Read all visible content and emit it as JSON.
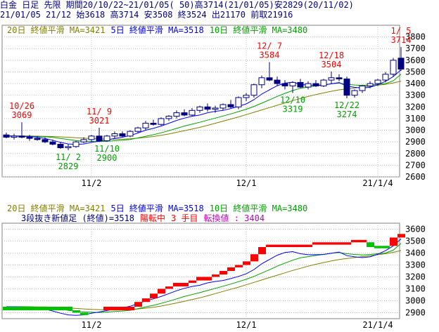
{
  "header": {
    "line1": "白金 日足 先限 期間20/10/22~21/01/05( 50)高3714(21/01/05)安2829(20/11/02)",
    "line2": "21/01/05 21/12 始3618 高3714 安3508 終3524 出21170 前取21916"
  },
  "colors": {
    "up": "#ffffff",
    "down": "#000080",
    "ma5": "#0000ff",
    "ma10": "#00a000",
    "ma20": "#808000",
    "grid": "#c0c0c0",
    "high_label": "#ff0000",
    "low_label": "#00a000",
    "breakout_up": "#ff0000",
    "breakout_down": "#00c000"
  },
  "chart_data": [
    {
      "type": "candlestick",
      "legend": {
        "ma20": "20日 終値平滑 MA=3421",
        "ma5": "5日 終値平滑 MA=3518",
        "ma10": "10日 終値平滑 MA=3480"
      },
      "ylim": [
        2600,
        3900
      ],
      "yticks": [
        2600,
        2700,
        2800,
        2900,
        3000,
        3100,
        3200,
        3300,
        3400,
        3500,
        3600,
        3700,
        3800
      ],
      "xticks": [
        {
          "label": "11/2",
          "index": 11
        },
        {
          "label": "12/1",
          "index": 31
        },
        {
          "label": "21/1/4",
          "index": 48
        }
      ],
      "grid": true,
      "candles": [
        {
          "o": 2960,
          "h": 2980,
          "l": 2930,
          "c": 2940
        },
        {
          "o": 2940,
          "h": 2970,
          "l": 2920,
          "c": 2950
        },
        {
          "o": 2950,
          "h": 3069,
          "l": 2930,
          "c": 2940
        },
        {
          "o": 2940,
          "h": 2960,
          "l": 2910,
          "c": 2930
        },
        {
          "o": 2930,
          "h": 2950,
          "l": 2910,
          "c": 2920
        },
        {
          "o": 2920,
          "h": 2940,
          "l": 2890,
          "c": 2900
        },
        {
          "o": 2900,
          "h": 2920,
          "l": 2870,
          "c": 2880
        },
        {
          "o": 2880,
          "h": 2900,
          "l": 2840,
          "c": 2850
        },
        {
          "o": 2850,
          "h": 2880,
          "l": 2829,
          "c": 2860
        },
        {
          "o": 2860,
          "h": 2910,
          "l": 2850,
          "c": 2900
        },
        {
          "o": 2900,
          "h": 2940,
          "l": 2890,
          "c": 2920
        },
        {
          "o": 2920,
          "h": 2960,
          "l": 2900,
          "c": 2950
        },
        {
          "o": 2950,
          "h": 3021,
          "l": 2900,
          "c": 2910
        },
        {
          "o": 2910,
          "h": 2960,
          "l": 2900,
          "c": 2950
        },
        {
          "o": 2950,
          "h": 2990,
          "l": 2930,
          "c": 2970
        },
        {
          "o": 2970,
          "h": 2990,
          "l": 2940,
          "c": 2950
        },
        {
          "o": 2950,
          "h": 3000,
          "l": 2940,
          "c": 2990
        },
        {
          "o": 2990,
          "h": 3030,
          "l": 2980,
          "c": 3020
        },
        {
          "o": 3020,
          "h": 3080,
          "l": 3000,
          "c": 3060
        },
        {
          "o": 3060,
          "h": 3090,
          "l": 3040,
          "c": 3050
        },
        {
          "o": 3050,
          "h": 3110,
          "l": 3040,
          "c": 3100
        },
        {
          "o": 3100,
          "h": 3130,
          "l": 3080,
          "c": 3120
        },
        {
          "o": 3120,
          "h": 3170,
          "l": 3100,
          "c": 3150
        },
        {
          "o": 3150,
          "h": 3180,
          "l": 3120,
          "c": 3130
        },
        {
          "o": 3130,
          "h": 3190,
          "l": 3120,
          "c": 3170
        },
        {
          "o": 3170,
          "h": 3210,
          "l": 3150,
          "c": 3200
        },
        {
          "o": 3200,
          "h": 3230,
          "l": 3160,
          "c": 3180
        },
        {
          "o": 3180,
          "h": 3210,
          "l": 3150,
          "c": 3190
        },
        {
          "o": 3190,
          "h": 3230,
          "l": 3170,
          "c": 3220
        },
        {
          "o": 3220,
          "h": 3260,
          "l": 3190,
          "c": 3200
        },
        {
          "o": 3200,
          "h": 3290,
          "l": 3180,
          "c": 3280
        },
        {
          "o": 3280,
          "h": 3320,
          "l": 3250,
          "c": 3300
        },
        {
          "o": 3300,
          "h": 3400,
          "l": 3280,
          "c": 3390
        },
        {
          "o": 3390,
          "h": 3470,
          "l": 3360,
          "c": 3450
        },
        {
          "o": 3450,
          "h": 3584,
          "l": 3420,
          "c": 3430
        },
        {
          "o": 3430,
          "h": 3460,
          "l": 3380,
          "c": 3400
        },
        {
          "o": 3400,
          "h": 3430,
          "l": 3350,
          "c": 3380
        },
        {
          "o": 3380,
          "h": 3420,
          "l": 3319,
          "c": 3410
        },
        {
          "o": 3410,
          "h": 3440,
          "l": 3360,
          "c": 3370
        },
        {
          "o": 3370,
          "h": 3420,
          "l": 3350,
          "c": 3400
        },
        {
          "o": 3400,
          "h": 3430,
          "l": 3370,
          "c": 3380
        },
        {
          "o": 3380,
          "h": 3440,
          "l": 3370,
          "c": 3430
        },
        {
          "o": 3430,
          "h": 3504,
          "l": 3400,
          "c": 3450
        },
        {
          "o": 3450,
          "h": 3480,
          "l": 3420,
          "c": 3440
        },
        {
          "o": 3440,
          "h": 3460,
          "l": 3274,
          "c": 3300
        },
        {
          "o": 3300,
          "h": 3350,
          "l": 3280,
          "c": 3340
        },
        {
          "o": 3340,
          "h": 3390,
          "l": 3320,
          "c": 3380
        },
        {
          "o": 3380,
          "h": 3420,
          "l": 3360,
          "c": 3400
        },
        {
          "o": 3400,
          "h": 3440,
          "l": 3380,
          "c": 3430
        },
        {
          "o": 3430,
          "h": 3500,
          "l": 3410,
          "c": 3480
        },
        {
          "o": 3480,
          "h": 3620,
          "l": 3460,
          "c": 3600
        },
        {
          "o": 3618,
          "h": 3714,
          "l": 3508,
          "c": 3524
        }
      ],
      "ma5": [
        2950,
        2950,
        2948,
        2946,
        2940,
        2930,
        2914,
        2896,
        2882,
        2878,
        2882,
        2896,
        2906,
        2918,
        2930,
        2940,
        2954,
        2976,
        3000,
        3016,
        3036,
        3060,
        3084,
        3104,
        3120,
        3130,
        3150,
        3162,
        3170,
        3186,
        3204,
        3226,
        3262,
        3310,
        3346,
        3382,
        3404,
        3412,
        3394,
        3386,
        3386,
        3388,
        3398,
        3408,
        3378,
        3368,
        3362,
        3368,
        3390,
        3420,
        3460,
        3518
      ],
      "ma10": [
        2950,
        2950,
        2950,
        2948,
        2946,
        2944,
        2938,
        2930,
        2920,
        2912,
        2906,
        2904,
        2902,
        2906,
        2910,
        2914,
        2920,
        2934,
        2948,
        2962,
        2978,
        2996,
        3016,
        3036,
        3052,
        3068,
        3086,
        3104,
        3122,
        3140,
        3160,
        3180,
        3204,
        3232,
        3260,
        3290,
        3316,
        3340,
        3360,
        3370,
        3380,
        3388,
        3398,
        3404,
        3394,
        3388,
        3384,
        3388,
        3394,
        3400,
        3424,
        3480
      ],
      "ma20": [
        2950,
        2950,
        2950,
        2950,
        2949,
        2948,
        2946,
        2943,
        2940,
        2936,
        2932,
        2928,
        2926,
        2924,
        2923,
        2924,
        2927,
        2932,
        2938,
        2946,
        2956,
        2968,
        2982,
        2996,
        3010,
        3025,
        3042,
        3060,
        3078,
        3096,
        3114,
        3134,
        3154,
        3174,
        3194,
        3214,
        3234,
        3254,
        3272,
        3290,
        3306,
        3320,
        3334,
        3346,
        3354,
        3362,
        3370,
        3378,
        3386,
        3394,
        3406,
        3421
      ],
      "annotations": [
        {
          "kind": "high",
          "index": 2,
          "date": "10/26",
          "value": "3069"
        },
        {
          "kind": "high",
          "index": 12,
          "date": "11/ 9",
          "value": "3021"
        },
        {
          "kind": "high",
          "index": 34,
          "date": "12/ 7",
          "value": "3584"
        },
        {
          "kind": "high",
          "index": 42,
          "date": "12/18",
          "value": "3504"
        },
        {
          "kind": "high",
          "index": 51,
          "date": "1/ 5",
          "value": "3714"
        },
        {
          "kind": "low",
          "index": 8,
          "date": "11/ 2",
          "value": "2829"
        },
        {
          "kind": "low",
          "index": 13,
          "date": "11/10",
          "value": "2900"
        },
        {
          "kind": "low",
          "index": 37,
          "date": "12/10",
          "value": "3319"
        },
        {
          "kind": "low",
          "index": 44,
          "date": "12/22",
          "value": "3274"
        }
      ]
    },
    {
      "type": "three-line-break",
      "legend": {
        "ma20": "20日 終値平滑 MA=3421",
        "ma5": "5日 終値平滑 MA=3518",
        "ma10": "10日 終値平滑 MA=3480"
      },
      "status": {
        "text1": "3段抜き新値足 (終値)=3518",
        "text2": "陽転中",
        "text3": "3 手目",
        "text4": "転換値 : 3404"
      },
      "ylim": [
        2850,
        3650
      ],
      "yticks": [
        2900,
        3000,
        3100,
        3200,
        3300,
        3400,
        3500,
        3600
      ],
      "xticks": [
        {
          "label": "11/2",
          "index": 11
        },
        {
          "label": "12/1",
          "index": 31
        },
        {
          "label": "21/1/4",
          "index": 48
        }
      ],
      "grid": true,
      "bricks": [
        {
          "i0": 0,
          "i1": 9,
          "lo": 2920,
          "hi": 2950,
          "dir": "down"
        },
        {
          "i0": 9,
          "i1": 10,
          "lo": 2900,
          "hi": 2920,
          "dir": "down"
        },
        {
          "i0": 10,
          "i1": 11,
          "lo": 2880,
          "hi": 2900,
          "dir": "down"
        },
        {
          "i0": 13,
          "i1": 17,
          "lo": 2920,
          "hi": 2950,
          "dir": "up"
        },
        {
          "i0": 17,
          "i1": 18,
          "lo": 2950,
          "hi": 2990,
          "dir": "up"
        },
        {
          "i0": 18,
          "i1": 19,
          "lo": 2990,
          "hi": 3020,
          "dir": "up"
        },
        {
          "i0": 19,
          "i1": 20,
          "lo": 3020,
          "hi": 3060,
          "dir": "up"
        },
        {
          "i0": 20,
          "i1": 21,
          "lo": 3060,
          "hi": 3100,
          "dir": "up"
        },
        {
          "i0": 21,
          "i1": 22,
          "lo": 3100,
          "hi": 3120,
          "dir": "up"
        },
        {
          "i0": 22,
          "i1": 24,
          "lo": 3120,
          "hi": 3150,
          "dir": "up"
        },
        {
          "i0": 24,
          "i1": 25,
          "lo": 3150,
          "hi": 3170,
          "dir": "up"
        },
        {
          "i0": 25,
          "i1": 27,
          "lo": 3170,
          "hi": 3200,
          "dir": "up"
        },
        {
          "i0": 27,
          "i1": 28,
          "lo": 3200,
          "hi": 3220,
          "dir": "up"
        },
        {
          "i0": 28,
          "i1": 29,
          "lo": 3220,
          "hi": 3250,
          "dir": "up"
        },
        {
          "i0": 29,
          "i1": 30,
          "lo": 3250,
          "hi": 3280,
          "dir": "up"
        },
        {
          "i0": 30,
          "i1": 31,
          "lo": 3280,
          "hi": 3300,
          "dir": "up"
        },
        {
          "i0": 31,
          "i1": 32,
          "lo": 3300,
          "hi": 3330,
          "dir": "up"
        },
        {
          "i0": 32,
          "i1": 33,
          "lo": 3330,
          "hi": 3390,
          "dir": "up"
        },
        {
          "i0": 33,
          "i1": 34,
          "lo": 3390,
          "hi": 3450,
          "dir": "up"
        },
        {
          "i0": 34,
          "i1": 40,
          "lo": 3450,
          "hi": 3470,
          "dir": "up"
        },
        {
          "i0": 40,
          "i1": 45,
          "lo": 3470,
          "hi": 3490,
          "dir": "up"
        },
        {
          "i0": 45,
          "i1": 47,
          "lo": 3490,
          "hi": 3510,
          "dir": "up"
        },
        {
          "i0": 47,
          "i1": 48,
          "lo": 3450,
          "hi": 3490,
          "dir": "down"
        },
        {
          "i0": 48,
          "i1": 50,
          "lo": 3440,
          "hi": 3460,
          "dir": "down"
        },
        {
          "i0": 50,
          "i1": 51,
          "lo": 3460,
          "hi": 3530,
          "dir": "up"
        },
        {
          "i0": 51,
          "i1": 52,
          "lo": 3530,
          "hi": 3560,
          "dir": "up"
        }
      ]
    }
  ]
}
